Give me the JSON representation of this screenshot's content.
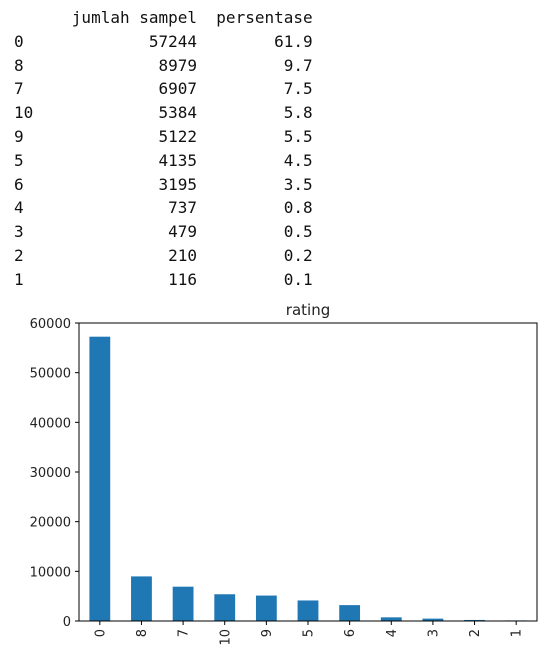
{
  "table": {
    "headers": [
      "jumlah sampel",
      "persentase"
    ],
    "rows": [
      {
        "index": "0",
        "count": "57244",
        "pct": "61.9"
      },
      {
        "index": "8",
        "count": "8979",
        "pct": "9.7"
      },
      {
        "index": "7",
        "count": "6907",
        "pct": "7.5"
      },
      {
        "index": "10",
        "count": "5384",
        "pct": "5.8"
      },
      {
        "index": "9",
        "count": "5122",
        "pct": "5.5"
      },
      {
        "index": "5",
        "count": "4135",
        "pct": "4.5"
      },
      {
        "index": "6",
        "count": "3195",
        "pct": "3.5"
      },
      {
        "index": "4",
        "count": "737",
        "pct": "0.8"
      },
      {
        "index": "3",
        "count": "479",
        "pct": "0.5"
      },
      {
        "index": "2",
        "count": "210",
        "pct": "0.2"
      },
      {
        "index": "1",
        "count": "116",
        "pct": "0.1"
      }
    ]
  },
  "chart_data": {
    "type": "bar",
    "title": "rating",
    "categories": [
      "0",
      "8",
      "7",
      "10",
      "9",
      "5",
      "6",
      "4",
      "3",
      "2",
      "1"
    ],
    "values": [
      57244,
      8979,
      6907,
      5384,
      5122,
      4135,
      3195,
      737,
      479,
      210,
      116
    ],
    "ylim": [
      0,
      60000
    ],
    "yticks": [
      0,
      10000,
      20000,
      30000,
      40000,
      50000,
      60000
    ],
    "xlabel": "",
    "ylabel": "",
    "grid": false,
    "bar_color": "#1f77b4"
  }
}
